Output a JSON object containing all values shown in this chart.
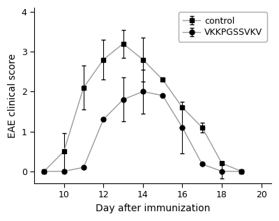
{
  "control_x": [
    9,
    10,
    11,
    12,
    13,
    14,
    15,
    16,
    17,
    18,
    19
  ],
  "control_y": [
    0.0,
    0.5,
    2.1,
    2.8,
    3.2,
    2.8,
    2.3,
    1.6,
    1.1,
    0.2,
    0.0
  ],
  "control_yerr": [
    0.0,
    0.45,
    0.55,
    0.5,
    0.35,
    0.55,
    0.0,
    0.0,
    0.12,
    0.0,
    0.0
  ],
  "peptide_x": [
    9,
    10,
    11,
    12,
    13,
    14,
    15,
    16,
    17,
    18,
    19
  ],
  "peptide_y": [
    0.0,
    0.0,
    0.1,
    1.3,
    1.8,
    2.0,
    1.9,
    1.1,
    0.18,
    0.0,
    0.0
  ],
  "peptide_yerr": [
    0.0,
    0.0,
    0.0,
    0.0,
    0.55,
    0.55,
    0.0,
    0.65,
    0.0,
    0.18,
    0.0
  ],
  "control_label": "control",
  "peptide_label": "VKKPGSSVKV",
  "xlabel": "Day after immunization",
  "ylabel": "EAE clinical score",
  "xlim": [
    8.5,
    20.5
  ],
  "ylim": [
    -0.3,
    4.1
  ],
  "xticks": [
    10,
    12,
    14,
    16,
    18,
    20
  ],
  "yticks": [
    0,
    1,
    2,
    3,
    4
  ],
  "line_color": "#999999",
  "marker_color": "#000000",
  "bg_color": "#ffffff",
  "legend_fontsize": 9,
  "axis_fontsize": 10,
  "tick_fontsize": 9
}
